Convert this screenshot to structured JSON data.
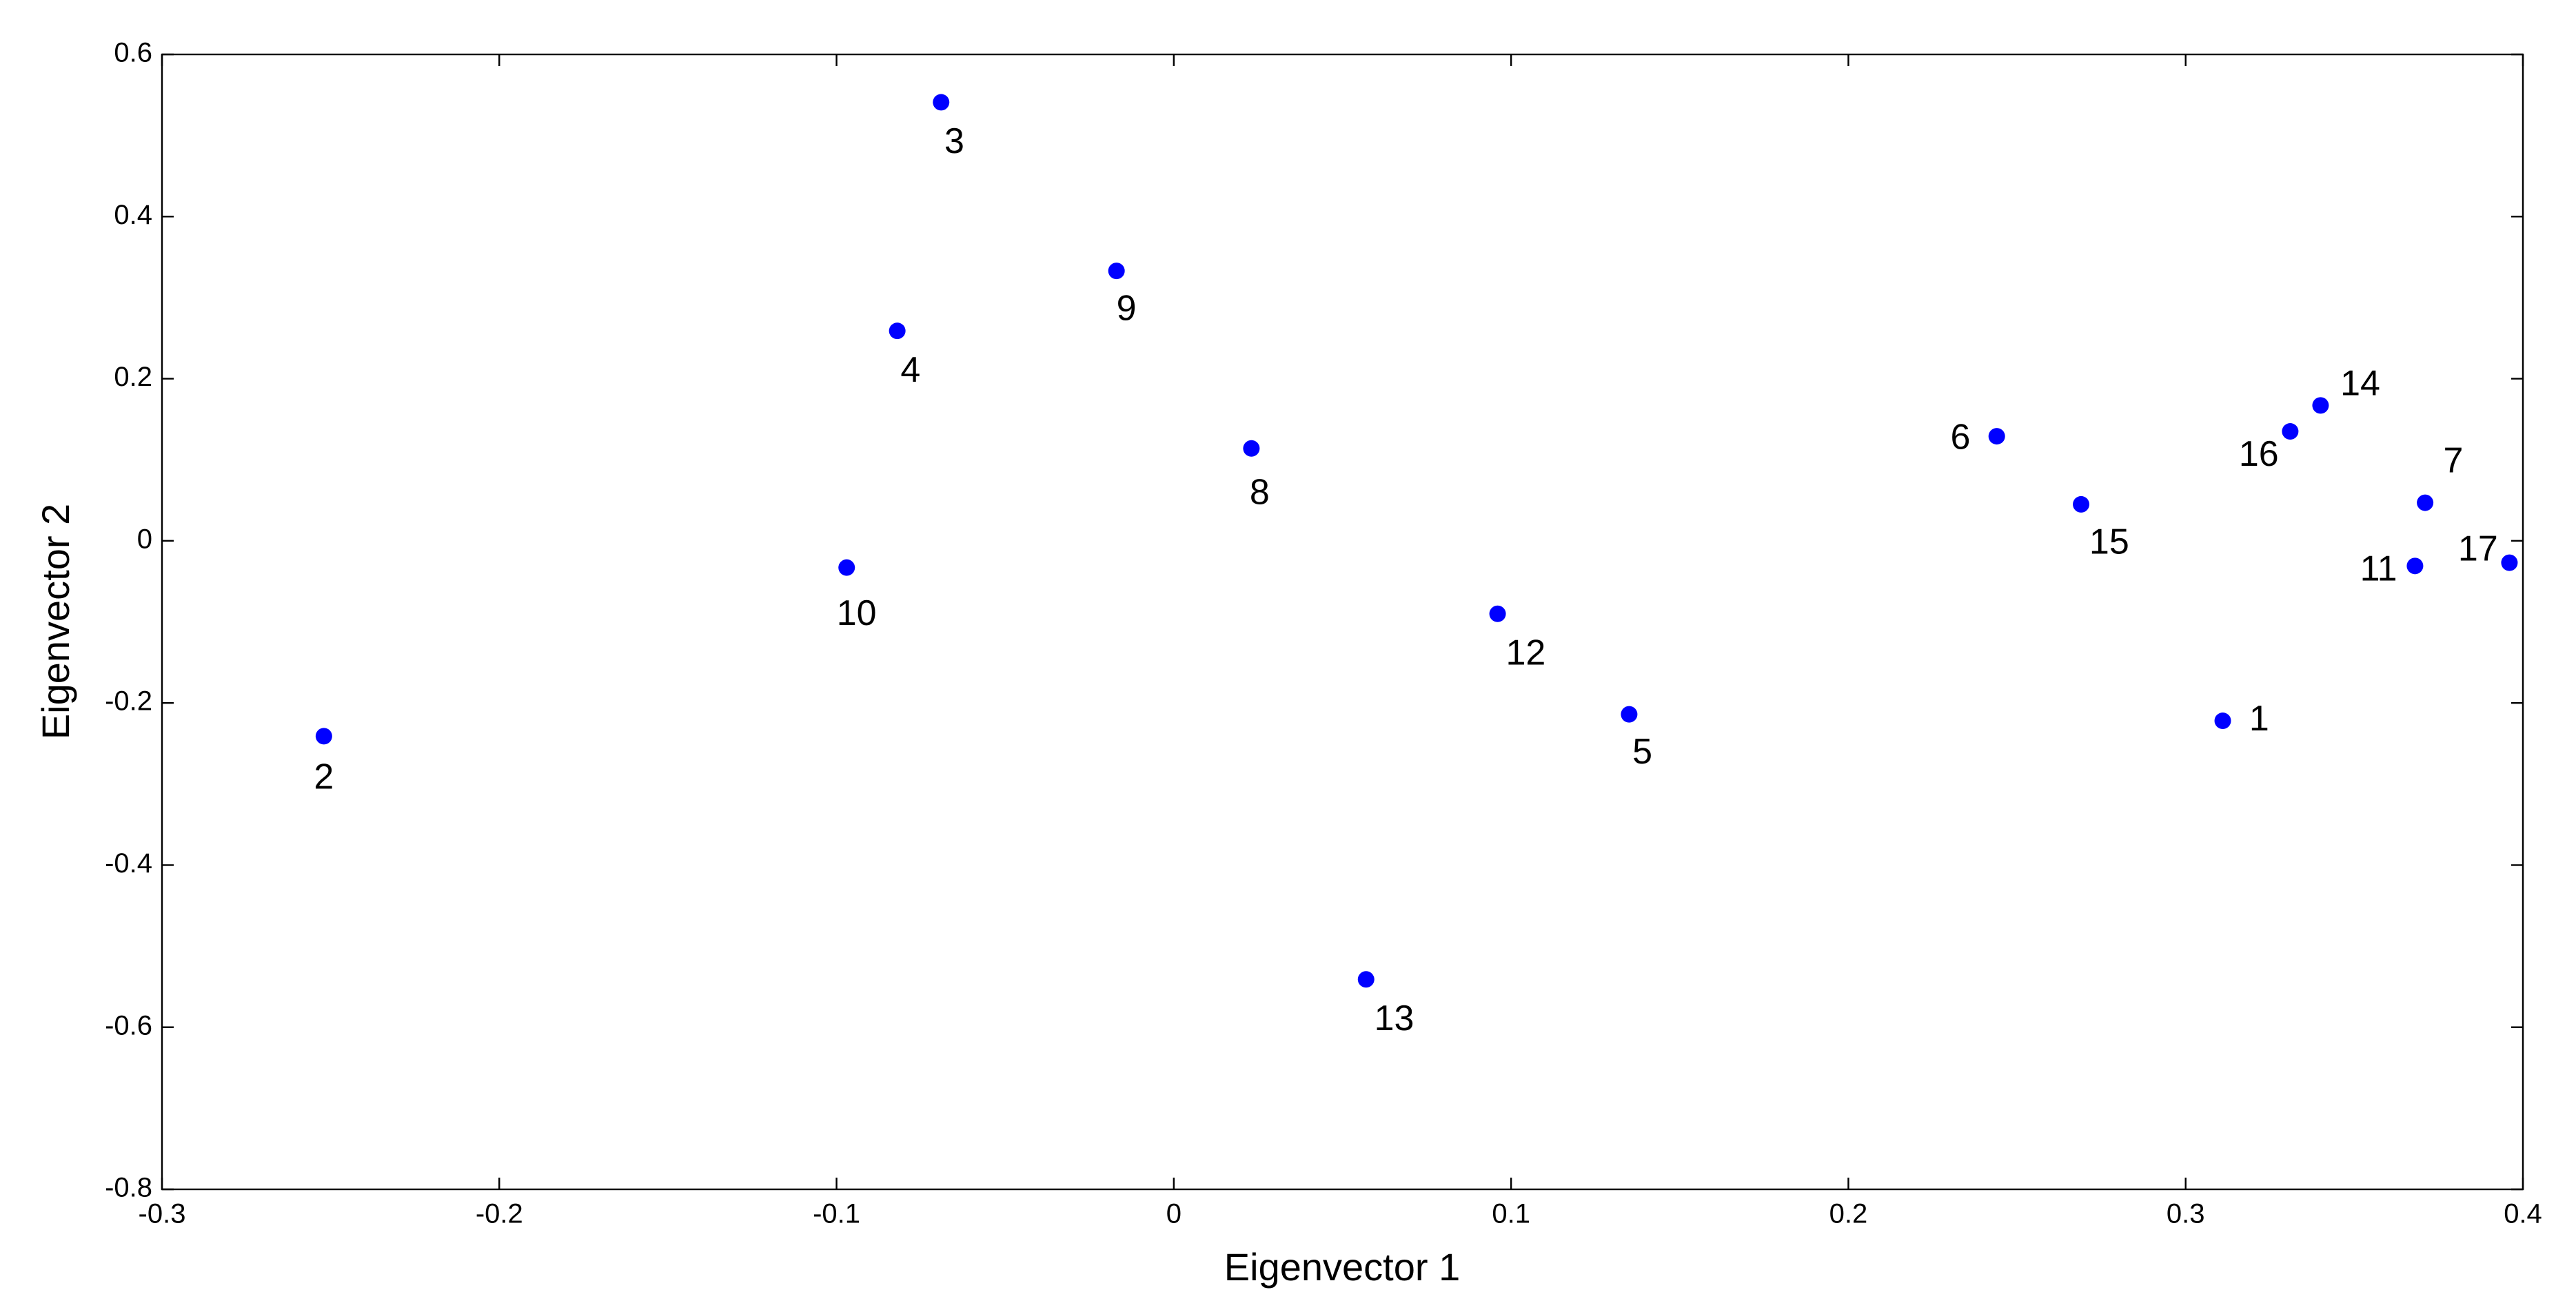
{
  "chart_data": {
    "type": "scatter",
    "xlabel": "Eigenvector 1",
    "ylabel": "Eigenvector 2",
    "labels": [
      "1",
      "2",
      "3",
      "4",
      "5",
      "6",
      "7",
      "8",
      "9",
      "10",
      "11",
      "12",
      "13",
      "14",
      "15",
      "16",
      "17"
    ],
    "x": [
      0.311,
      -0.252,
      -0.069,
      -0.082,
      0.135,
      0.244,
      0.371,
      0.023,
      -0.017,
      -0.097,
      0.368,
      0.096,
      0.057,
      0.34,
      0.269,
      0.331,
      0.396
    ],
    "y": [
      -0.222,
      -0.241,
      0.541,
      0.259,
      -0.214,
      0.129,
      0.047,
      0.114,
      0.333,
      -0.033,
      -0.031,
      -0.09,
      -0.541,
      0.167,
      0.045,
      0.135,
      -0.027
    ],
    "color": "#0000ff",
    "xlim": [
      -0.3,
      0.4
    ],
    "xticks": [
      -0.3,
      -0.2,
      -0.1,
      0,
      0.1,
      0.2,
      0.3,
      0.4
    ],
    "ylim": [
      -0.8,
      0.6
    ],
    "yticks": [
      -0.8,
      -0.6,
      -0.4,
      -0.2,
      0,
      0.2,
      0.4,
      0.6
    ]
  }
}
